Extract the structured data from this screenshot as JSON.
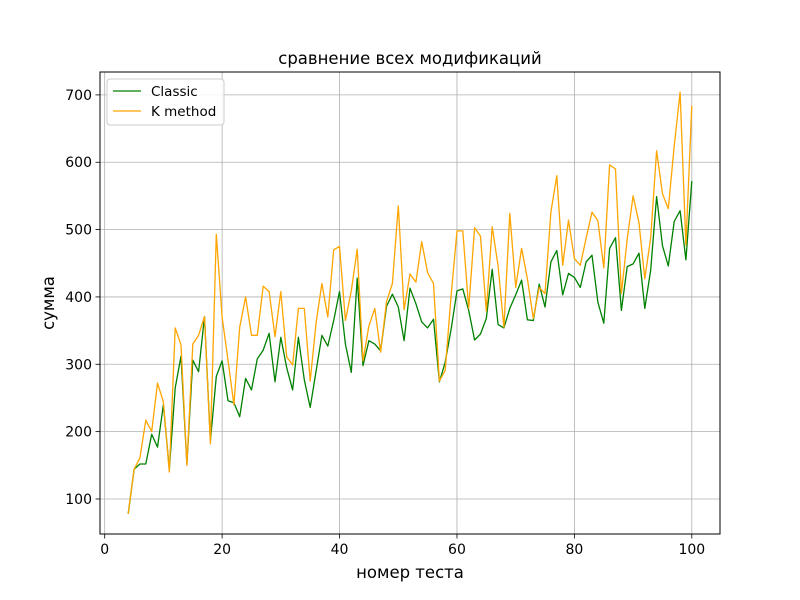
{
  "chart_data": {
    "type": "line",
    "title": "сравнение всех модификаций",
    "xlabel": "номер теста",
    "ylabel": "сумма",
    "xlim": [
      -0.8,
      104.8
    ],
    "ylim": [
      48,
      734
    ],
    "xticks": [
      0,
      20,
      40,
      60,
      80,
      100
    ],
    "yticks": [
      100,
      200,
      300,
      400,
      500,
      600,
      700
    ],
    "grid": true,
    "legend": "upper left",
    "x": [
      4,
      5,
      6,
      7,
      8,
      9,
      10,
      11,
      12,
      13,
      14,
      15,
      16,
      17,
      18,
      19,
      20,
      21,
      22,
      23,
      24,
      25,
      26,
      27,
      28,
      29,
      30,
      31,
      32,
      33,
      34,
      35,
      36,
      37,
      38,
      39,
      40,
      41,
      42,
      43,
      44,
      45,
      46,
      47,
      48,
      49,
      50,
      51,
      52,
      53,
      54,
      55,
      56,
      57,
      58,
      59,
      60,
      61,
      62,
      63,
      64,
      65,
      66,
      67,
      68,
      69,
      70,
      71,
      72,
      73,
      74,
      75,
      76,
      77,
      78,
      79,
      80,
      81,
      82,
      83,
      84,
      85,
      86,
      87,
      88,
      89,
      90,
      91,
      92,
      93,
      94,
      95,
      96,
      97,
      98,
      99,
      100
    ],
    "series": [
      {
        "name": "Classic",
        "color": "#008000",
        "values": [
          78,
          144,
          152,
          152,
          196,
          177,
          240,
          144,
          265,
          312,
          152,
          306,
          289,
          371,
          186,
          282,
          305,
          246,
          243,
          222,
          279,
          262,
          308,
          321,
          346,
          274,
          340,
          295,
          262,
          340,
          277,
          236,
          290,
          343,
          327,
          365,
          408,
          330,
          288,
          428,
          298,
          335,
          330,
          320,
          386,
          404,
          385,
          335,
          413,
          390,
          363,
          354,
          367,
          274,
          303,
          352,
          409,
          412,
          380,
          336,
          345,
          368,
          441,
          359,
          354,
          383,
          403,
          425,
          366,
          365,
          419,
          385,
          452,
          469,
          403,
          435,
          429,
          414,
          452,
          462,
          392,
          361,
          472,
          488,
          380,
          445,
          449,
          465,
          383,
          440,
          549,
          476,
          446,
          512,
          528,
          455,
          572
        ]
      },
      {
        "name": "K method",
        "color": "#FFA500",
        "values": [
          78,
          144,
          161,
          217,
          200,
          272,
          244,
          140,
          354,
          329,
          150,
          330,
          343,
          371,
          182,
          493,
          370,
          306,
          240,
          355,
          400,
          343,
          343,
          416,
          408,
          341,
          408,
          311,
          299,
          383,
          383,
          275,
          362,
          420,
          370,
          470,
          475,
          365,
          409,
          471,
          305,
          357,
          383,
          318,
          393,
          420,
          535,
          381,
          434,
          422,
          482,
          436,
          420,
          275,
          291,
          402,
          498,
          498,
          383,
          503,
          490,
          379,
          504,
          446,
          355,
          524,
          414,
          472,
          427,
          368,
          414,
          405,
          526,
          580,
          447,
          514,
          457,
          447,
          487,
          526,
          513,
          443,
          596,
          590,
          405,
          486,
          550,
          510,
          427,
          488,
          617,
          553,
          531,
          624,
          704,
          477,
          684
        ]
      }
    ]
  }
}
